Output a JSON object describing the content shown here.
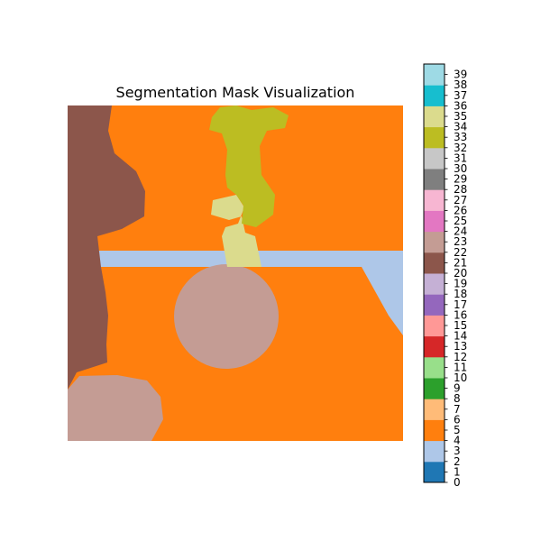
{
  "chart_data": [
    {
      "type": "heatmap",
      "title": "Segmentation Mask Visualization",
      "axes_visible": false,
      "regions": [
        {
          "name": "background",
          "class_id": 5,
          "color": "#ff7f0e"
        },
        {
          "name": "left-wall",
          "class_id": 21,
          "color": "#8c564b"
        },
        {
          "name": "horizontal-band",
          "class_id": 3,
          "color": "#aec7e8"
        },
        {
          "name": "circle",
          "class_id": 23,
          "color": "#c49c94"
        },
        {
          "name": "bottom-left-blob",
          "class_id": 23,
          "color": "#c49c94"
        },
        {
          "name": "upper-figure",
          "class_id": 33,
          "color": "#bcbd22"
        },
        {
          "name": "lower-figure",
          "class_id": 35,
          "color": "#dbdb8d"
        }
      ]
    },
    {
      "type": "colorbar",
      "vmin": 0,
      "vmax": 40,
      "tick_labels": [
        "0",
        "1",
        "2",
        "3",
        "4",
        "5",
        "6",
        "7",
        "8",
        "9",
        "10",
        "11",
        "12",
        "13",
        "14",
        "15",
        "16",
        "17",
        "18",
        "19",
        "20",
        "21",
        "22",
        "23",
        "24",
        "25",
        "26",
        "27",
        "28",
        "29",
        "30",
        "31",
        "32",
        "33",
        "34",
        "35",
        "36",
        "37",
        "38",
        "39"
      ],
      "colors": [
        "#1f77b4",
        "#aec7e8",
        "#ff7f0e",
        "#ffbb78",
        "#2ca02c",
        "#98df8a",
        "#d62728",
        "#ff9896",
        "#9467bd",
        "#c5b0d5",
        "#8c564b",
        "#c49c94",
        "#e377c2",
        "#f7b6d2",
        "#7f7f7f",
        "#c7c7c7",
        "#bcbd22",
        "#dbdb8d",
        "#17becf",
        "#9edae5"
      ]
    }
  ]
}
